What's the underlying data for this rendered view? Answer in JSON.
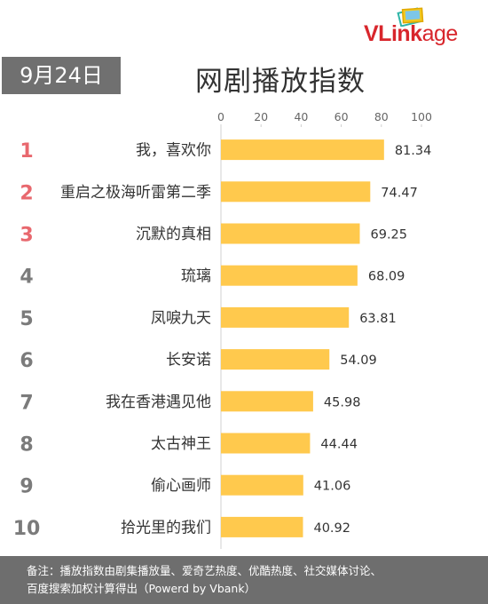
{
  "header": {
    "date": "9月24日",
    "title": "网剧播放指数",
    "logo_main": "VLink",
    "logo_tail": "age"
  },
  "colors": {
    "bar": "#ffc94d",
    "rank_top": "#e8686e",
    "rank_other": "#7b7b7b",
    "date_bg": "#707070",
    "logo": "#d8262c"
  },
  "chart_data": {
    "type": "bar",
    "orientation": "horizontal",
    "ranks": [
      "1",
      "2",
      "3",
      "4",
      "5",
      "6",
      "7",
      "8",
      "9",
      "10"
    ],
    "categories": [
      "我，喜欢你",
      "重启之极海听雷第二季",
      "沉默的真相",
      "琉璃",
      "凤唳九天",
      "长安诺",
      "我在香港遇见他",
      "太古神王",
      "偷心画师",
      "拾光里的我们"
    ],
    "values": [
      81.34,
      74.47,
      69.25,
      68.09,
      63.81,
      54.09,
      45.98,
      44.44,
      41.06,
      40.92
    ],
    "value_labels": [
      "81.34",
      "74.47",
      "69.25",
      "68.09",
      "63.81",
      "54.09",
      "45.98",
      "44.44",
      "41.06",
      "40.92"
    ],
    "xlim": [
      0,
      100
    ],
    "xticks": [
      "0",
      "20",
      "40",
      "60",
      "80",
      "100"
    ],
    "axis_position": "top",
    "grid": false
  },
  "footer": {
    "line1": "备注：播放指数由剧集播放量、爱奇艺热度、优酷热度、社交媒体讨论、",
    "line2": "百度搜索加权计算得出（Powerd by Vbank）"
  }
}
